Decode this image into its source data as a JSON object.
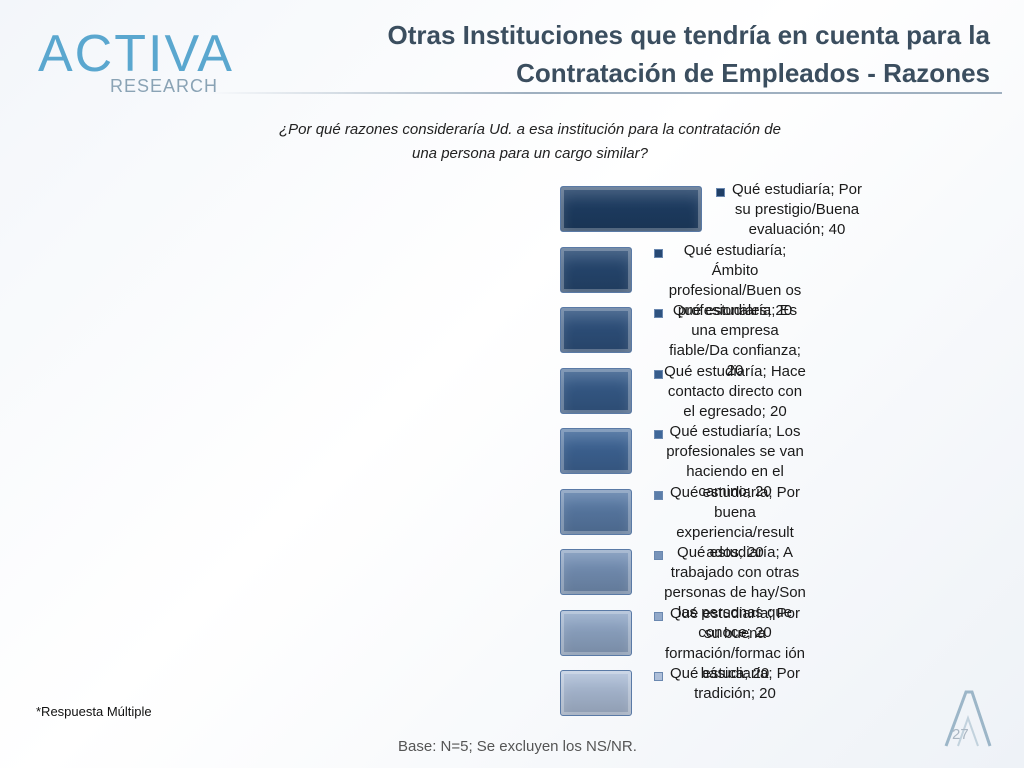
{
  "header": {
    "logo_text": "ACTIVA",
    "logo_sub": "RESEARCH",
    "title_line1": "Otras Instituciones que tendría en cuenta para la",
    "title_line2": "Contratación de Empleados - Razones"
  },
  "question_line1": "¿Por qué razones consideraría Ud. a esa institución para la contratación de",
  "question_line2": "una persona para un cargo similar?",
  "footnote": "*Respuesta Múltiple",
  "base_note": "Base: N=5; Se excluyen los NS/NR.",
  "page_number": "27",
  "colors": {
    "bar_dark": "#1f3f66",
    "bar_mid": "#3f6799",
    "bar_light": "#aebfd9"
  },
  "chart_data": {
    "type": "bar",
    "title": "",
    "xlabel": "",
    "ylabel": "",
    "categories": [
      "Qué estudiaría; Por su prestigio/Buena evaluación",
      "Qué estudiaría; Ámbito profesional/Buen os profesionales",
      "Qué estudiaría; Es una empresa fiable/Da confianza",
      "Qué estudiaría; Hace contacto directo con el egresado",
      "Qué estudiaría; Los profesionales se van haciendo en el camino",
      "Qué estudiaría; Por buena experiencia/result ados",
      "Qué estudiaría; A trabajado con otras personas de hay/Son las personas que conoce",
      "Qué estudiaría; Por su buena formación/formac ión básica",
      "Qué estudiaría; Por tradición"
    ],
    "values": [
      40,
      20,
      20,
      20,
      20,
      20,
      20,
      20,
      20
    ],
    "labels": [
      "Qué estudiaría; Por su prestigio/Buena evaluación; 40",
      "Qué estudiaría; Ámbito profesional/Buen os profesionales; 20",
      "Qué estudiaría; Es una empresa fiable/Da confianza; 20",
      "Qué estudiaría; Hace contacto directo con el egresado; 20",
      "Qué estudiaría; Los profesionales se van haciendo en el camino; 20",
      "Qué estudiaría; Por buena experiencia/result ados; 20",
      "Qué estudiaría; A trabajado con otras personas de hay/Son las personas que conoce; 20",
      "Qué estudiaría; Por su buena formación/formac ión básica; 20",
      "Qué estudiaría; Por tradición; 20"
    ],
    "xlim": [
      0,
      40
    ]
  }
}
